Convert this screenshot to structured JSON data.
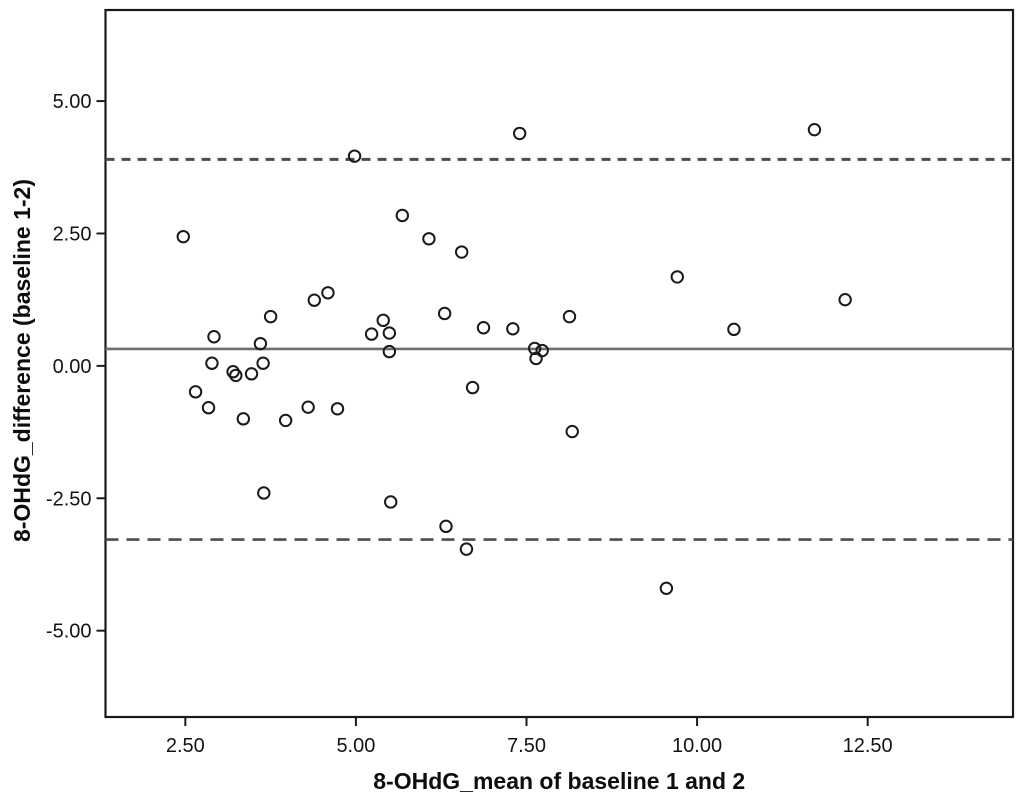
{
  "chart_data": {
    "type": "scatter",
    "title": "",
    "xlabel": "8-OHdG_mean of baseline 1 and 2",
    "ylabel": "8-OHdG_difference (baseline 1-2)",
    "xlim": [
      1.33,
      14.63
    ],
    "ylim": [
      -6.63,
      6.72
    ],
    "x_ticks": [
      2.5,
      5.0,
      7.5,
      10.0,
      12.5
    ],
    "x_tick_labels": [
      "2.50",
      "5.00",
      "7.50",
      "10.00",
      "12.50"
    ],
    "y_ticks": [
      5.0,
      2.5,
      0.0,
      -2.5,
      -5.0
    ],
    "y_tick_labels": [
      "5.00",
      "2.50",
      "0.00",
      "-2.50",
      "-5.00"
    ],
    "grid": false,
    "legend": null,
    "marker": "open-circle",
    "reference_lines": {
      "mean": 0.32,
      "upper_loa": 3.9,
      "lower_loa": -3.28
    },
    "points": [
      [
        2.47,
        2.44
      ],
      [
        2.65,
        -0.49
      ],
      [
        2.84,
        -0.79
      ],
      [
        2.89,
        0.05
      ],
      [
        2.92,
        0.55
      ],
      [
        3.2,
        -0.11
      ],
      [
        3.24,
        -0.18
      ],
      [
        3.35,
        -1.0
      ],
      [
        3.47,
        -0.15
      ],
      [
        3.6,
        0.42
      ],
      [
        3.64,
        0.05
      ],
      [
        3.65,
        -2.4
      ],
      [
        3.75,
        0.93
      ],
      [
        3.97,
        -1.03
      ],
      [
        4.3,
        -0.78
      ],
      [
        4.39,
        1.24
      ],
      [
        4.59,
        1.38
      ],
      [
        4.73,
        -0.81
      ],
      [
        4.98,
        3.96
      ],
      [
        5.23,
        0.6
      ],
      [
        5.4,
        0.86
      ],
      [
        5.49,
        0.62
      ],
      [
        5.49,
        0.27
      ],
      [
        5.51,
        -2.57
      ],
      [
        5.68,
        2.84
      ],
      [
        6.07,
        2.4
      ],
      [
        6.3,
        0.99
      ],
      [
        6.32,
        -3.03
      ],
      [
        6.55,
        2.15
      ],
      [
        6.62,
        -3.46
      ],
      [
        6.71,
        -0.41
      ],
      [
        6.87,
        0.72
      ],
      [
        7.3,
        0.7
      ],
      [
        7.4,
        4.39
      ],
      [
        7.62,
        0.33
      ],
      [
        7.64,
        0.14
      ],
      [
        7.73,
        0.29
      ],
      [
        8.13,
        0.93
      ],
      [
        8.17,
        -1.24
      ],
      [
        9.55,
        -4.2
      ],
      [
        9.71,
        1.68
      ],
      [
        10.54,
        0.69
      ],
      [
        11.72,
        4.46
      ],
      [
        12.17,
        1.25
      ]
    ],
    "colors": {
      "frame": "#1a1a1a",
      "marker_stroke": "#1a1a1a",
      "mean_line": "#6e6e6e",
      "loa_line": "#4d4d4d",
      "text": "#141414",
      "background": "#ffffff"
    }
  }
}
